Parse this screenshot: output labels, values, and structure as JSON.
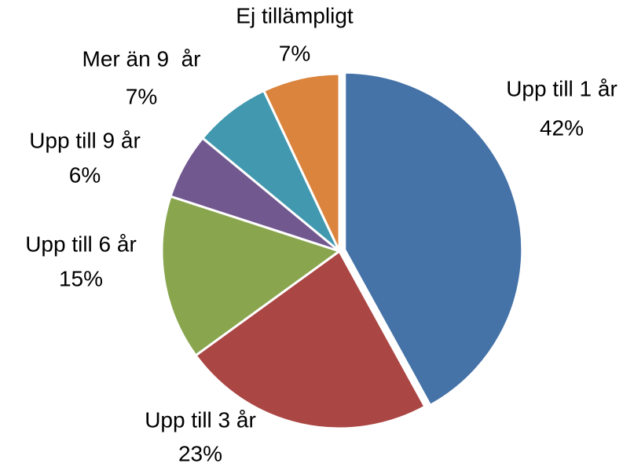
{
  "chart_data": {
    "type": "pie",
    "categories": [
      "Upp till 1 år",
      "Upp till 3 år",
      "Upp till 6 år",
      "Upp till 9 år",
      "Mer än 9  år",
      "Ej tillämpligt"
    ],
    "values": [
      42,
      23,
      15,
      6,
      7,
      7
    ],
    "value_labels": [
      "42%",
      "23%",
      "15%",
      "6%",
      "7%",
      "7%"
    ],
    "colors": [
      "#4572a7",
      "#aa4643",
      "#89a54e",
      "#71588f",
      "#4198af",
      "#db843d"
    ]
  }
}
